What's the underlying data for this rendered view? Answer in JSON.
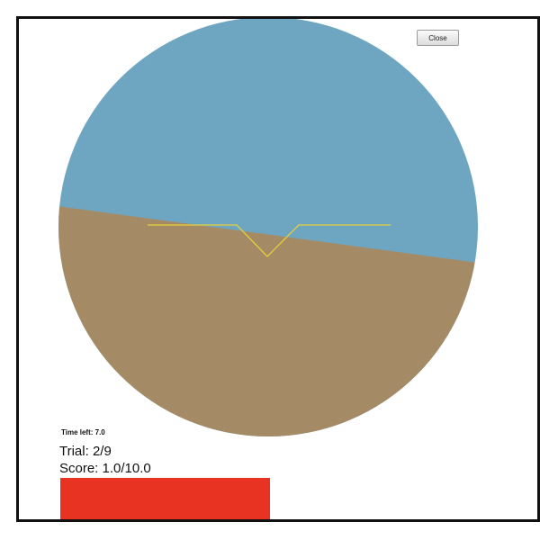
{
  "close_label": "Close",
  "time_left_text": "Time left: 7.0",
  "trial_text": "Trial: 2/9",
  "score_text": "Score: 1.0/10.0",
  "time_bar": {
    "fraction": 0.47,
    "color": "#e83323"
  },
  "colors": {
    "sky": "#6ea6c1",
    "ground": "#a58b65",
    "reticle": "#e6cf3a"
  }
}
